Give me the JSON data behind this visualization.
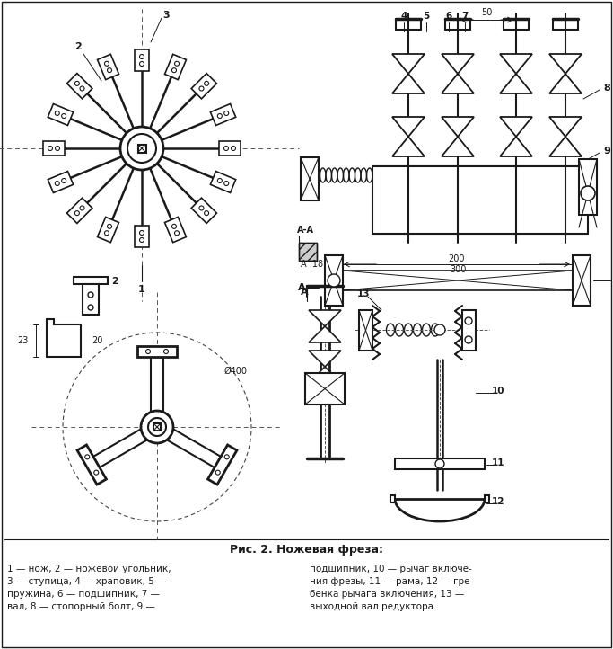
{
  "title": "Рис. 2. Ножевая фреза:",
  "caption_left": "1 — нож, 2 — ножевой угольник,\n3 — ступица, 4 — храповик, 5 —\nпружина, 6 — подшипник, 7 —\nвал, 8 — стопорный болт, 9 —",
  "caption_right": "подшипник, 10 — рычаг включе-\nния фрезы, 11 — рама, 12 — гре-\nбенка рычага включения, 13 —\nвыходной вал редуктора.",
  "bg_color": "#ffffff",
  "line_color": "#1a1a1a",
  "fig_width": 6.83,
  "fig_height": 7.22,
  "dpi": 100
}
